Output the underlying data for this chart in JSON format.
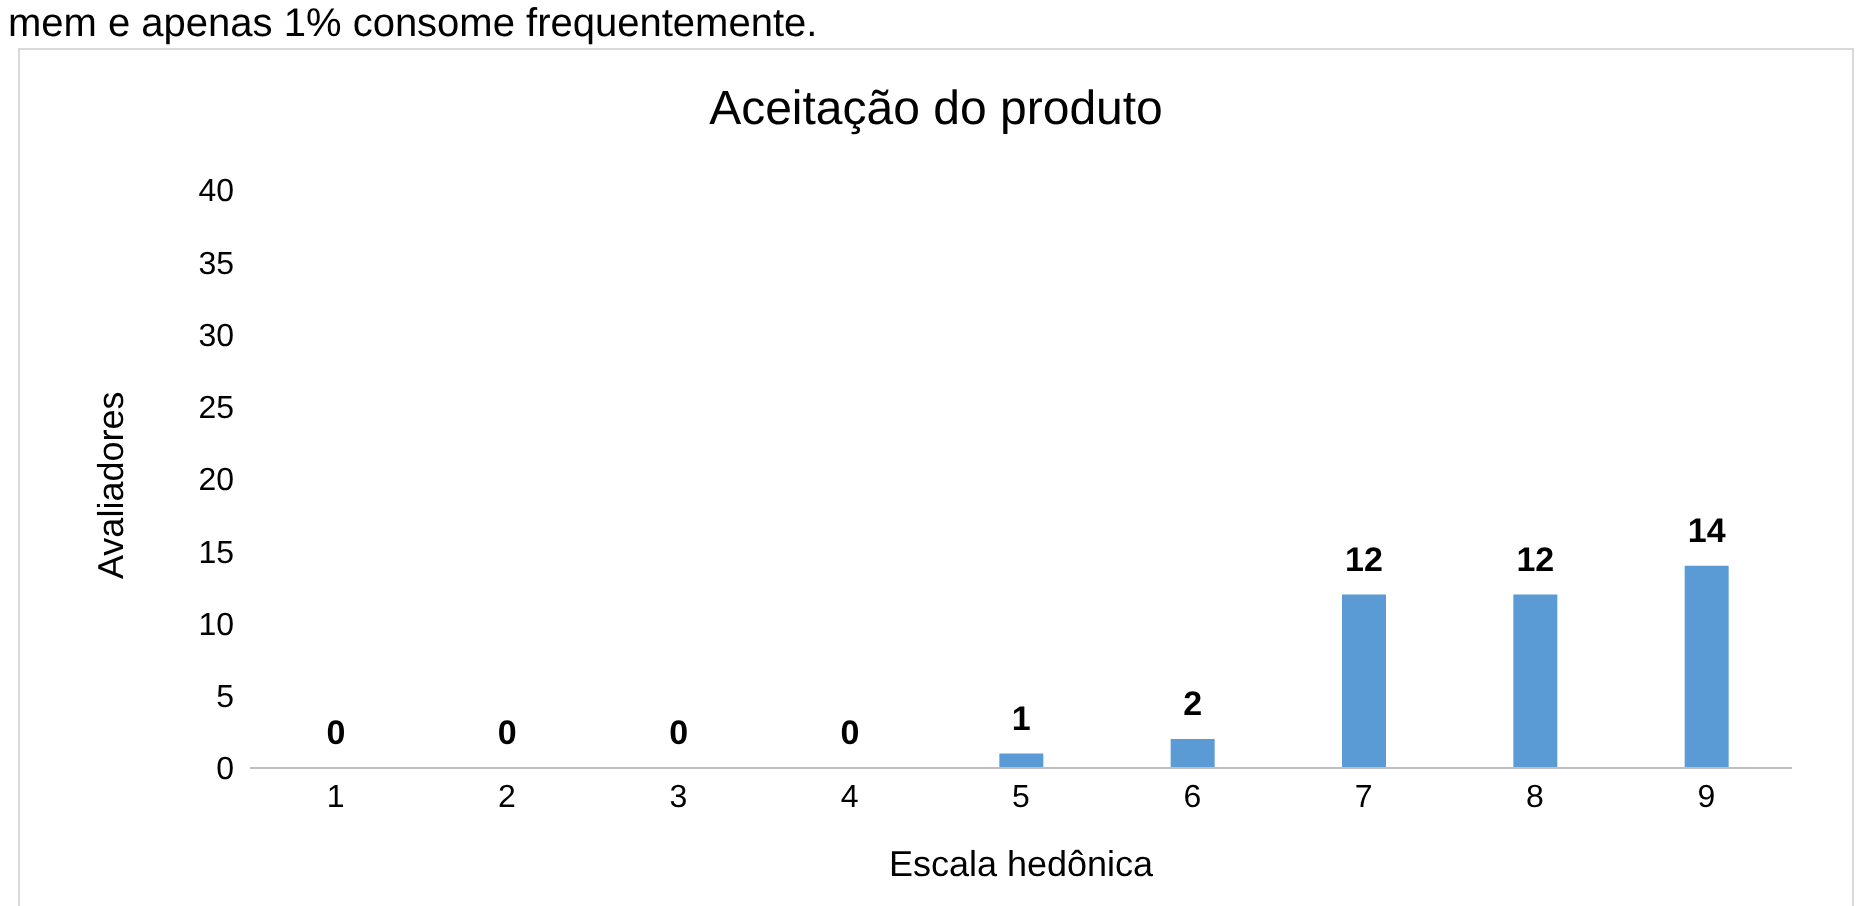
{
  "chart_data": {
    "type": "bar",
    "title": "Aceitação do produto",
    "xlabel": "Escala hedônica",
    "ylabel": "Avaliadores",
    "annotations": [
      "mem e apenas 1% consome frequentemente."
    ],
    "categories": [
      "1",
      "2",
      "3",
      "4",
      "5",
      "6",
      "7",
      "8",
      "9"
    ],
    "values": [
      0,
      0,
      0,
      0,
      1,
      2,
      12,
      12,
      14
    ],
    "color": "#5b9bd5",
    "ylim": [
      0,
      40
    ],
    "yticks": [
      0,
      5,
      10,
      15,
      20,
      25,
      30,
      35,
      40
    ],
    "data_labels": true
  }
}
